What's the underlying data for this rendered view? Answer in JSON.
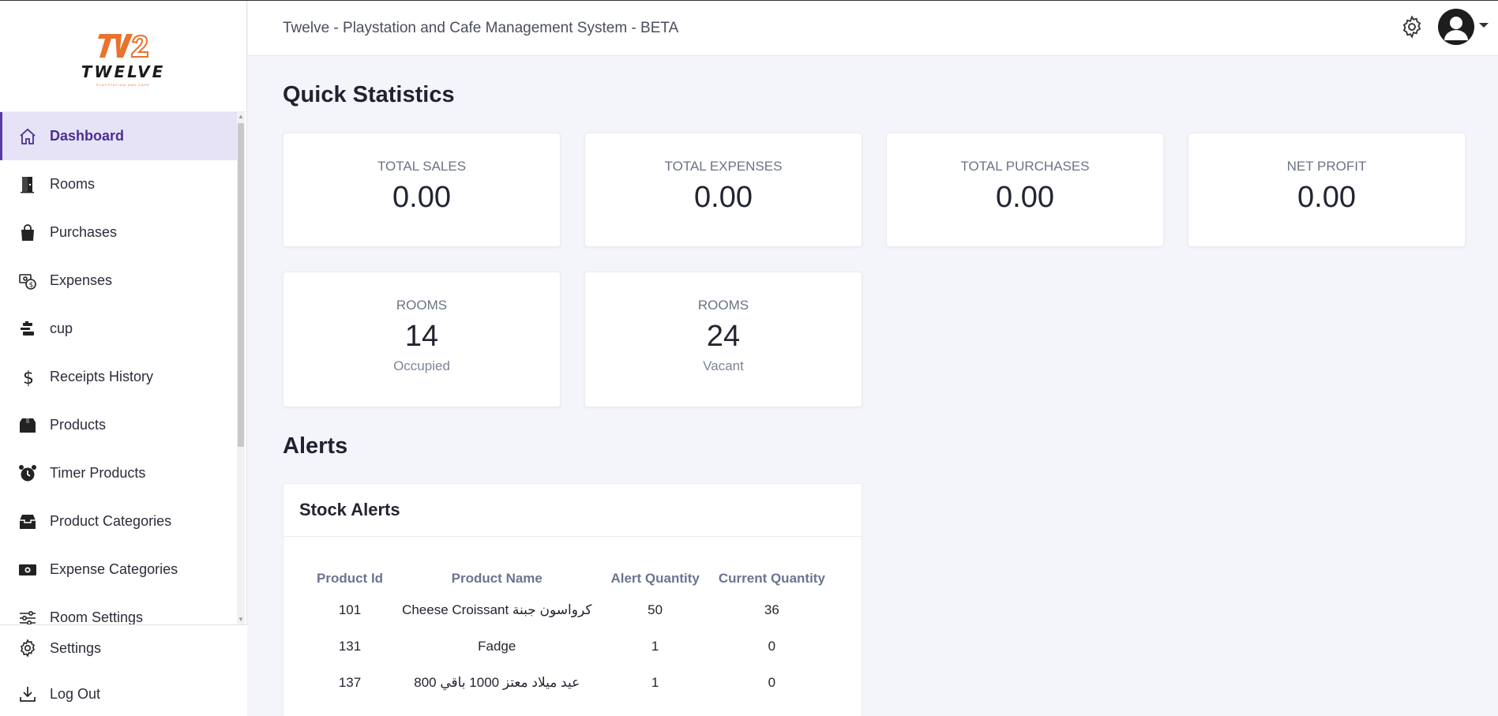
{
  "logo": {
    "text": "TWELVE"
  },
  "header": {
    "title": "Twelve - Playstation and Cafe Management System - BETA"
  },
  "sidebar": {
    "items": [
      {
        "label": "Dashboard",
        "icon": "home-icon",
        "active": true
      },
      {
        "label": "Rooms",
        "icon": "door-icon"
      },
      {
        "label": "Purchases",
        "icon": "shopping-bag-icon"
      },
      {
        "label": "Expenses",
        "icon": "money-exchange-icon"
      },
      {
        "label": "cup",
        "icon": "cup-stack-icon"
      },
      {
        "label": "Receipts History",
        "icon": "dollar-icon"
      },
      {
        "label": "Products",
        "icon": "box-icon"
      },
      {
        "label": "Timer Products",
        "icon": "alarm-clock-icon"
      },
      {
        "label": "Product Categories",
        "icon": "inbox-icon"
      },
      {
        "label": "Expense Categories",
        "icon": "banknote-icon"
      },
      {
        "label": "Room Settings",
        "icon": "sliders-icon"
      }
    ],
    "bottom": [
      {
        "label": "Settings",
        "icon": "gear-icon"
      },
      {
        "label": "Log Out",
        "icon": "download-icon"
      }
    ]
  },
  "quick_stats": {
    "title": "Quick Statistics",
    "cards": [
      {
        "label": "TOTAL SALES",
        "value": "0.00"
      },
      {
        "label": "TOTAL EXPENSES",
        "value": "0.00"
      },
      {
        "label": "TOTAL PURCHASES",
        "value": "0.00"
      },
      {
        "label": "NET PROFIT",
        "value": "0.00"
      }
    ],
    "rooms": [
      {
        "label": "ROOMS",
        "value": "14",
        "sub": "Occupied"
      },
      {
        "label": "ROOMS",
        "value": "24",
        "sub": "Vacant"
      }
    ]
  },
  "alerts": {
    "title": "Alerts",
    "stock": {
      "title": "Stock Alerts",
      "columns": [
        "Product Id",
        "Product Name",
        "Alert Quantity",
        "Current Quantity"
      ],
      "rows": [
        [
          "101",
          "Cheese Croissant كرواسون جبنة",
          "50",
          "36"
        ],
        [
          "131",
          "Fadge",
          "1",
          "0"
        ],
        [
          "137",
          "عيد ميلاد معتز 1000 باقي 800",
          "1",
          "0"
        ]
      ]
    }
  }
}
